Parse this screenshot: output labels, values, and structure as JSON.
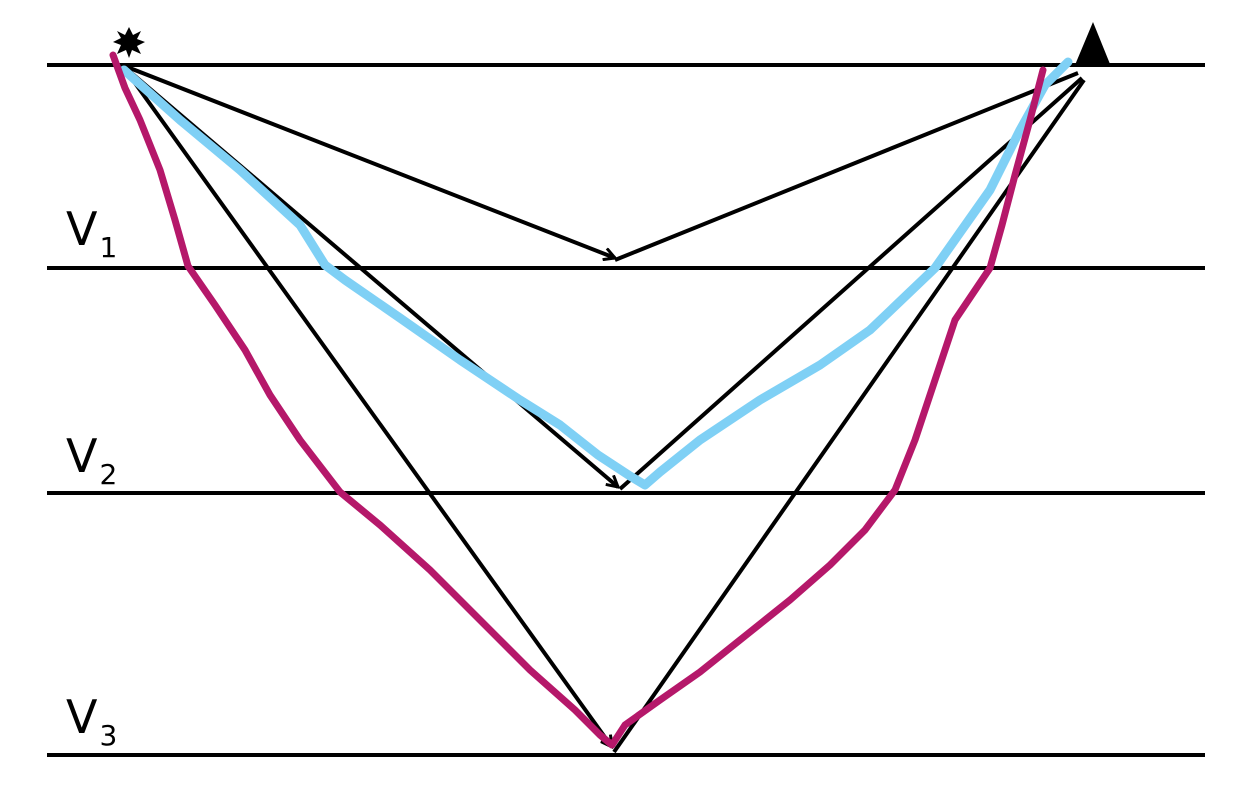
{
  "layers": [
    {
      "label": "V",
      "subscript": "1"
    },
    {
      "label": "V",
      "subscript": "2"
    },
    {
      "label": "V",
      "subscript": "3"
    }
  ],
  "symbols": {
    "source": "star-burst-icon",
    "receiver": "triangle-icon"
  },
  "colors": {
    "interfaces": "#000000",
    "reflected_rays": "#000000",
    "blue_ray_path": "#7fd0f5",
    "magenta_ray_path": "#b5186a"
  }
}
